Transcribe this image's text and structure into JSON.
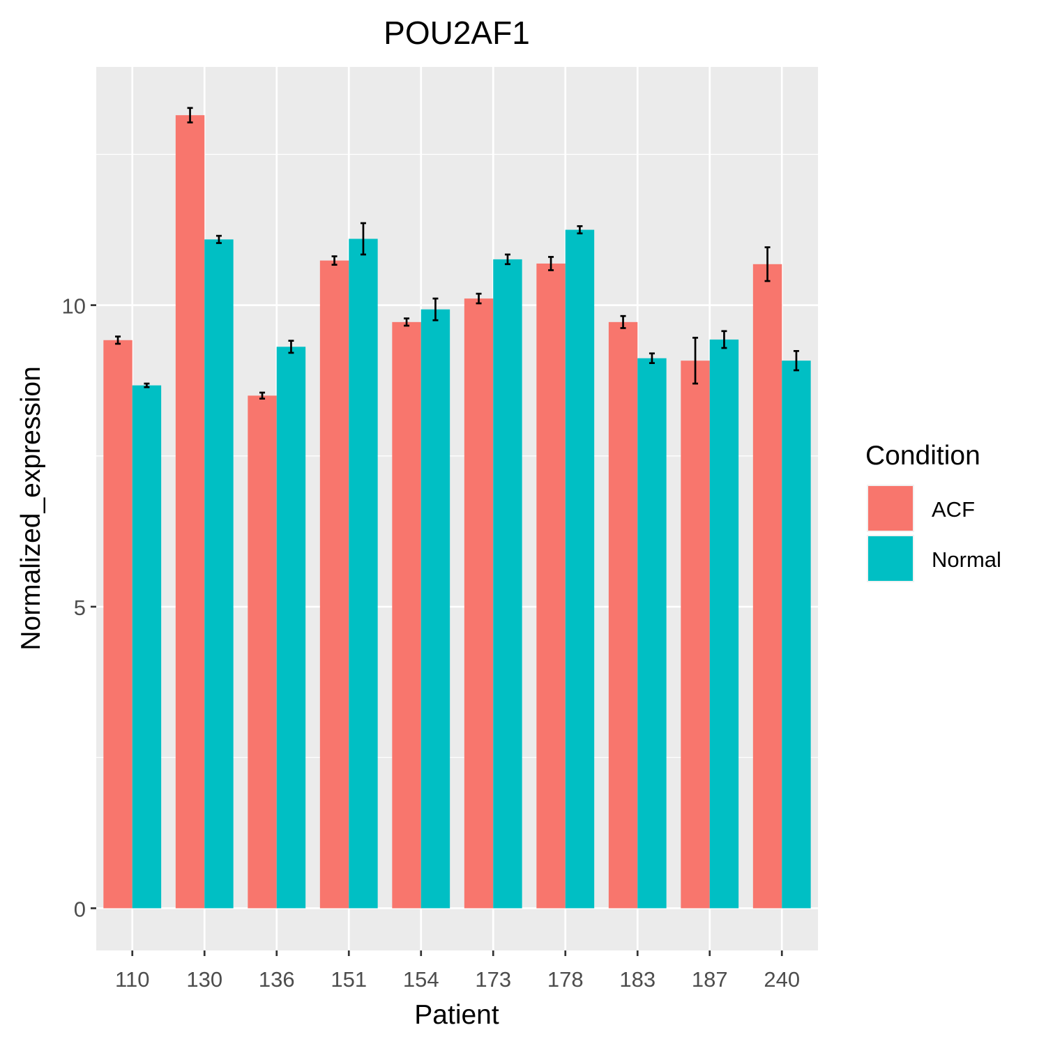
{
  "chart_data": {
    "type": "bar",
    "title": "POU2AF1",
    "xlabel": "Patient",
    "ylabel": "Normalized_expression",
    "categories": [
      "110",
      "130",
      "136",
      "151",
      "154",
      "173",
      "178",
      "183",
      "187",
      "240"
    ],
    "series": [
      {
        "name": "ACF",
        "color": "#F8766D",
        "values": [
          9.42,
          13.15,
          8.5,
          10.74,
          9.72,
          10.11,
          10.69,
          9.72,
          9.08,
          10.68
        ],
        "error_low": [
          9.36,
          13.03,
          8.45,
          10.67,
          9.66,
          10.03,
          10.58,
          9.62,
          8.7,
          10.4
        ],
        "error_high": [
          9.48,
          13.27,
          8.55,
          10.81,
          9.78,
          10.19,
          10.8,
          9.82,
          9.46,
          10.96
        ]
      },
      {
        "name": "Normal",
        "color": "#00BFC4",
        "values": [
          8.67,
          11.09,
          9.31,
          11.1,
          9.93,
          10.76,
          11.25,
          9.12,
          9.43,
          9.08
        ],
        "error_low": [
          8.64,
          11.03,
          9.21,
          10.84,
          9.75,
          10.68,
          11.19,
          9.04,
          9.29,
          8.92
        ],
        "error_high": [
          8.7,
          11.15,
          9.41,
          11.36,
          10.11,
          10.84,
          11.31,
          9.2,
          9.57,
          9.24
        ]
      }
    ],
    "ylim": [
      -0.7,
      13.95
    ],
    "yticks": [
      0,
      5,
      10
    ],
    "ytick_labels": [
      "0",
      "5",
      "10"
    ],
    "grid": true,
    "legend_title": "Condition",
    "legend_position": "right"
  }
}
